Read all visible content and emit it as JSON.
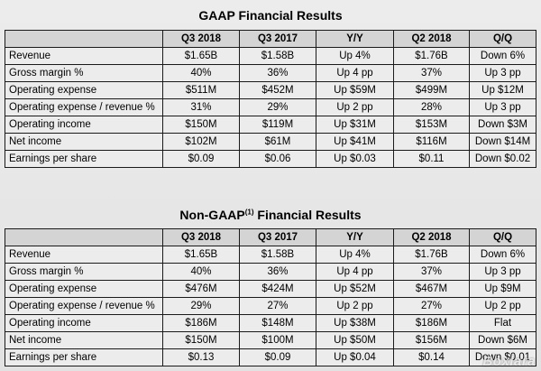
{
  "gaap": {
    "title": "GAAP Financial Results",
    "headers": [
      "",
      "Q3 2018",
      "Q3 2017",
      "Y/Y",
      "Q2 2018",
      "Q/Q"
    ],
    "rows": [
      [
        "Revenue",
        "$1.65B",
        "$1.58B",
        "Up 4%",
        "$1.76B",
        "Down 6%"
      ],
      [
        "Gross margin %",
        "40%",
        "36%",
        "Up 4 pp",
        "37%",
        "Up 3 pp"
      ],
      [
        "Operating expense",
        "$511M",
        "$452M",
        "Up $59M",
        "$499M",
        "Up $12M"
      ],
      [
        "Operating expense / revenue %",
        "31%",
        "29%",
        "Up 2 pp",
        "28%",
        "Up 3 pp"
      ],
      [
        "Operating income",
        "$150M",
        "$119M",
        "Up $31M",
        "$153M",
        "Down $3M"
      ],
      [
        "Net income",
        "$102M",
        "$61M",
        "Up $41M",
        "$116M",
        "Down $14M"
      ],
      [
        "Earnings per share",
        "$0.09",
        "$0.06",
        "Up $0.03",
        "$0.11",
        "Down $0.02"
      ]
    ]
  },
  "non_gaap": {
    "title_prefix": "Non-GAAP",
    "title_footnote": "(1)",
    "title_suffix": " Financial Results",
    "headers": [
      "",
      "Q3 2018",
      "Q3 2017",
      "Y/Y",
      "Q2 2018",
      "Q/Q"
    ],
    "rows": [
      [
        "Revenue",
        "$1.65B",
        "$1.58B",
        "Up 4%",
        "$1.76B",
        "Down 6%"
      ],
      [
        "Gross margin %",
        "40%",
        "36%",
        "Up 4 pp",
        "37%",
        "Up 3 pp"
      ],
      [
        "Operating expense",
        "$476M",
        "$424M",
        "Up $52M",
        "$467M",
        "Up $9M"
      ],
      [
        "Operating expense / revenue %",
        "29%",
        "27%",
        "Up 2 pp",
        "27%",
        "Up 2 pp"
      ],
      [
        "Operating income",
        "$186M",
        "$148M",
        "Up $38M",
        "$186M",
        "Flat"
      ],
      [
        "Net income",
        "$150M",
        "$100M",
        "Up $50M",
        "$156M",
        "Down $6M"
      ],
      [
        "Earnings per share",
        "$0.13",
        "$0.09",
        "Up $0.04",
        "$0.14",
        "Down $0.01"
      ]
    ]
  },
  "watermark": "Boxlara"
}
